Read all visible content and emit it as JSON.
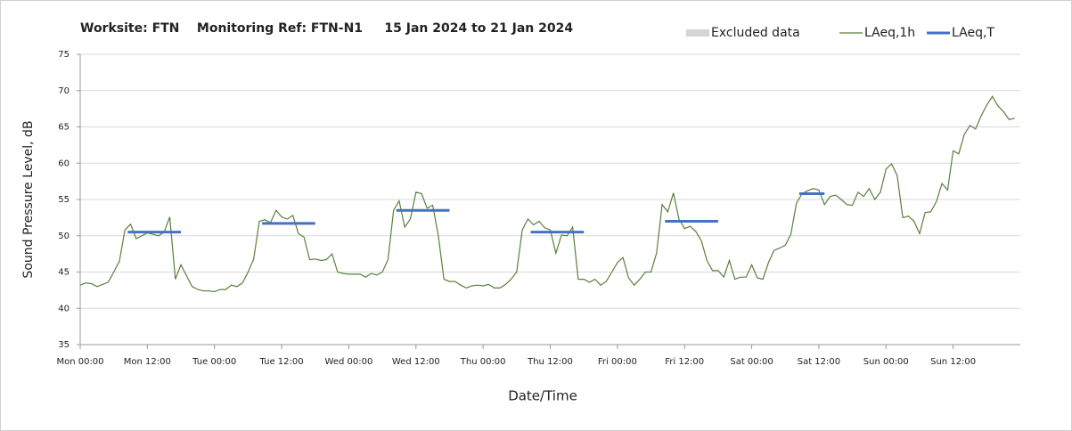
{
  "chart_data": {
    "type": "line",
    "title": "Worksite: FTN    Monitoring Ref: FTN-N1     15 Jan 2024 to 21 Jan 2024",
    "xlabel": "Date/Time",
    "ylabel": "Sound Pressure Level, dB",
    "xlim": [
      0,
      168
    ],
    "ylim": [
      35,
      75
    ],
    "yticks": [
      35,
      40,
      45,
      50,
      55,
      60,
      65,
      70,
      75
    ],
    "xticks": [
      {
        "value": 0,
        "label": "Mon 00:00"
      },
      {
        "value": 12,
        "label": "Mon 12:00"
      },
      {
        "value": 24,
        "label": "Tue 00:00"
      },
      {
        "value": 36,
        "label": "Tue 12:00"
      },
      {
        "value": 48,
        "label": "Wed 00:00"
      },
      {
        "value": 60,
        "label": "Wed 12:00"
      },
      {
        "value": 72,
        "label": "Thu 00:00"
      },
      {
        "value": 84,
        "label": "Thu 12:00"
      },
      {
        "value": 96,
        "label": "Fri 00:00"
      },
      {
        "value": 108,
        "label": "Fri 12:00"
      },
      {
        "value": 120,
        "label": "Sat 00:00"
      },
      {
        "value": 132,
        "label": "Sat 12:00"
      },
      {
        "value": 144,
        "label": "Sun 00:00"
      },
      {
        "value": 156,
        "label": "Sun 12:00"
      }
    ],
    "grid": true,
    "series": [
      {
        "name": "Excluded data",
        "color": "#d4d4d4"
      },
      {
        "name": "LAeq,1h",
        "color": "#5b7f3c",
        "x": [
          0,
          1,
          2,
          3,
          4,
          5,
          6,
          7,
          8,
          9,
          10,
          11,
          12,
          13,
          14,
          15,
          16,
          17,
          18,
          19,
          20,
          21,
          22,
          23,
          24,
          25,
          26,
          27,
          28,
          29,
          30,
          31,
          32,
          33,
          34,
          35,
          36,
          37,
          38,
          39,
          40,
          41,
          42,
          43,
          44,
          45,
          46,
          47,
          48,
          49,
          50,
          51,
          52,
          53,
          54,
          55,
          56,
          57,
          58,
          59,
          60,
          61,
          62,
          63,
          64,
          65,
          66,
          67,
          68,
          69,
          70,
          71,
          72,
          73,
          74,
          75,
          76,
          77,
          78,
          79,
          80,
          81,
          82,
          83,
          84,
          85,
          86,
          87,
          88,
          89,
          90,
          91,
          92,
          93,
          94,
          95,
          96,
          97,
          98,
          99,
          100,
          101,
          102,
          103,
          104,
          105,
          106,
          107,
          108,
          109,
          110,
          111,
          112,
          113,
          114,
          115,
          116,
          117,
          118,
          119,
          120,
          121,
          122,
          123,
          124,
          125,
          126,
          127,
          128,
          129,
          130,
          131,
          132,
          133,
          134,
          135,
          136,
          137,
          138,
          139,
          140,
          141,
          142,
          143,
          144,
          145,
          146,
          147,
          148,
          149,
          150,
          151,
          152,
          153,
          154,
          155,
          156,
          157,
          158,
          159,
          160,
          161,
          162,
          163,
          164,
          165,
          166,
          167
        ],
        "values": [
          43.2,
          43.5,
          43.4,
          43,
          43.3,
          43.6,
          45,
          46.5,
          50.8,
          51.6,
          49.6,
          50,
          50.4,
          50.2,
          50,
          50.5,
          52.6,
          44,
          46,
          44.5,
          43,
          42.6,
          42.4,
          42.4,
          42.3,
          42.6,
          42.6,
          43.2,
          43,
          43.5,
          45,
          46.8,
          52,
          52.2,
          51.8,
          53.5,
          52.6,
          52.3,
          52.8,
          50.3,
          49.8,
          46.7,
          46.8,
          46.6,
          46.7,
          47.5,
          45,
          44.8,
          44.7,
          44.7,
          44.7,
          44.3,
          44.8,
          44.6,
          45,
          46.7,
          53.5,
          54.8,
          51.2,
          52.3,
          56,
          55.8,
          53.8,
          54.2,
          50,
          44,
          43.7,
          43.7,
          43.2,
          42.8,
          43.1,
          43.2,
          43.1,
          43.3,
          42.8,
          42.8,
          43.3,
          44,
          45,
          50.8,
          52.3,
          51.5,
          52,
          51.1,
          50.8,
          47.6,
          50.1,
          50,
          51.2,
          44,
          44,
          43.6,
          44,
          43.2,
          43.7,
          45,
          46.3,
          47,
          44.2,
          43.2,
          44,
          45,
          45,
          47.6,
          54.3,
          53.3,
          55.9,
          52.3,
          51,
          51.3,
          50.6,
          49.3,
          46.6,
          45.2,
          45.2,
          44.3,
          46.6,
          44,
          44.3,
          44.3,
          46,
          44.2,
          44,
          46.3,
          48,
          48.3,
          48.7,
          50.2,
          54.5,
          55.8,
          56.2,
          56.5,
          56.3,
          54.3,
          55.4,
          55.6,
          55,
          54.3,
          54.2,
          56,
          55.4,
          56.5,
          55,
          56,
          59.2,
          59.9,
          58.3,
          52.5,
          52.7,
          52,
          50.3,
          53.2,
          53.3,
          54.7,
          57.2,
          56.3,
          61.7,
          61.3,
          64,
          65.2,
          64.7,
          66.5,
          68,
          69.2,
          67.9,
          67.1,
          66,
          66.2
        ]
      },
      {
        "name": "LAeq,T",
        "color": "#4472c4",
        "segments": [
          {
            "x": [
              8.5,
              18
            ],
            "value": 50.5
          },
          {
            "x": [
              32.5,
              42
            ],
            "value": 51.7
          },
          {
            "x": [
              56.5,
              66
            ],
            "value": 53.5
          },
          {
            "x": [
              80.5,
              90
            ],
            "value": 50.5
          },
          {
            "x": [
              104.5,
              114
            ],
            "value": 52
          },
          {
            "x": [
              128.5,
              133
            ],
            "value": 55.8
          }
        ]
      }
    ]
  }
}
